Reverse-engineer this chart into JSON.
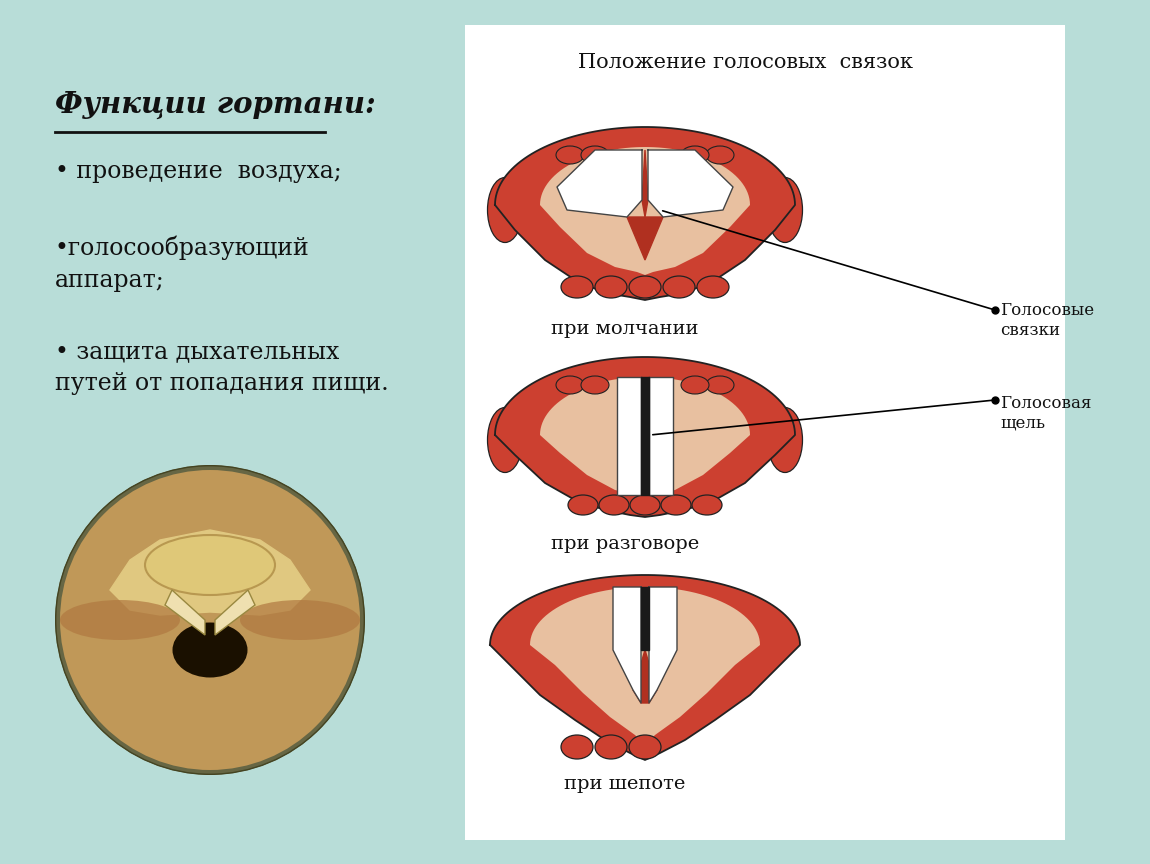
{
  "bg_color": "#b8ddd8",
  "panel_bg": "#ffffff",
  "title_text": "Положение голосовых  связок",
  "label1": "при молчании",
  "label2": "при разговоре",
  "label3": "при шепоте",
  "annotation1": "Голосовые\nсвязки",
  "annotation2": "Голосовая\nщель",
  "heading": "Функции гортани:",
  "bullet1": "• проведение  воздуха;",
  "bullet2": "•голосообразующий\nаппарат;",
  "bullet3": "• защита дыхательных\nпутей от попадания пищи.",
  "text_color": "#111111",
  "red_dark": "#b03020",
  "red_mid": "#cc4030",
  "red_light": "#e05040",
  "flesh": "#e8c0a0",
  "flesh_light": "#f0d8c0",
  "white_cord": "#ffffff",
  "outline": "#222222"
}
